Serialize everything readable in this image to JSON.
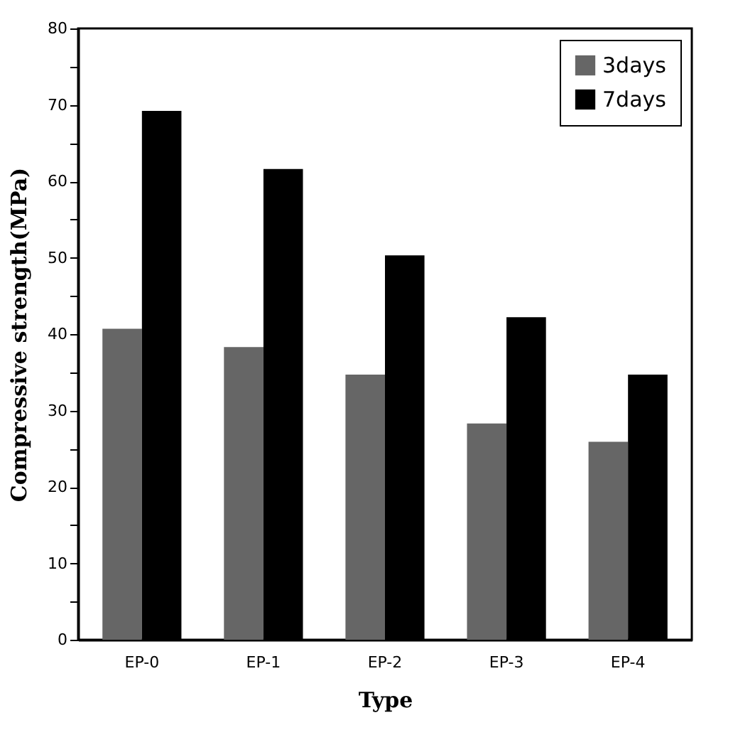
{
  "chart_data": {
    "type": "bar",
    "xlabel": "Type",
    "ylabel": "Compressive strength(MPa)",
    "categories": [
      "EP-0",
      "EP-1",
      "EP-2",
      "EP-3",
      "EP-4"
    ],
    "series": [
      {
        "name": "3days",
        "color": "#666666",
        "values": [
          40.7,
          38.3,
          34.7,
          28.3,
          25.9
        ]
      },
      {
        "name": "7days",
        "color": "#000000",
        "values": [
          69.2,
          61.6,
          50.3,
          42.2,
          34.7
        ]
      }
    ],
    "ylim": [
      0,
      80
    ],
    "yticks": [
      0,
      {
        "value": 5,
        "label": null
      },
      10,
      {
        "value": 15,
        "label": null
      },
      20,
      {
        "value": 25,
        "label": null
      },
      30,
      {
        "value": 35,
        "label": null
      },
      40,
      {
        "value": 45,
        "label": null
      },
      50,
      {
        "value": 55,
        "label": null
      },
      60,
      {
        "value": 65,
        "label": null
      },
      70,
      {
        "value": 75,
        "label": null
      },
      80
    ],
    "legend": "top right",
    "grid": false
  }
}
